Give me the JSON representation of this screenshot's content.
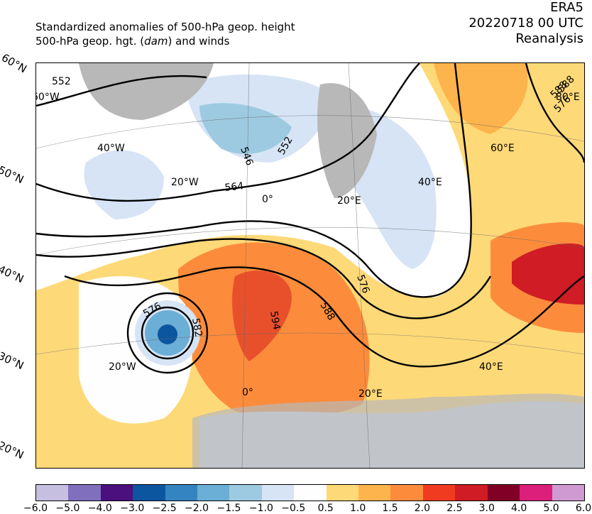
{
  "header": {
    "title_line1": "Standardized anomalies of 500-hPa geop. height",
    "title_line2_pre": "500-hPa geop. hgt. (",
    "title_line2_unit": "dam",
    "title_line2_post": ") and winds",
    "dataset": "ERA5",
    "datetime": "20220718 00 UTC",
    "product": "Reanalysis"
  },
  "lat_labels": [
    "60°N",
    "50°N",
    "40°N",
    "30°N",
    "20°N"
  ],
  "lon_labels": [
    "60°W",
    "40°W",
    "20°W",
    "0°",
    "20°E",
    "40°E",
    "60°E",
    "80°E",
    "20°W",
    "0°",
    "20°E",
    "40°E"
  ],
  "contour_labels": [
    "552",
    "546",
    "552",
    "564",
    "576",
    "576",
    "582",
    "588",
    "594",
    "588",
    "576",
    "588"
  ],
  "colorbar": {
    "ticks": [
      "−6.0",
      "−5.0",
      "−4.0",
      "−3.0",
      "−2.5",
      "−2.0",
      "−1.5",
      "−1.0",
      "−0.5",
      "0.5",
      "1.0",
      "1.5",
      "2.0",
      "2.5",
      "3.0",
      "4.0",
      "5.0",
      "6.0"
    ],
    "colors": [
      "#c6bfe0",
      "#7f6fbd",
      "#4b0f7e",
      "#0c56a0",
      "#3584c2",
      "#6baed6",
      "#9ecae1",
      "#d6e4f5",
      "#fefefe",
      "#fed978",
      "#feb44c",
      "#fc8c3c",
      "#f03b20",
      "#d01c24",
      "#800026",
      "#dc1f7b",
      "#cf9ad1"
    ]
  }
}
